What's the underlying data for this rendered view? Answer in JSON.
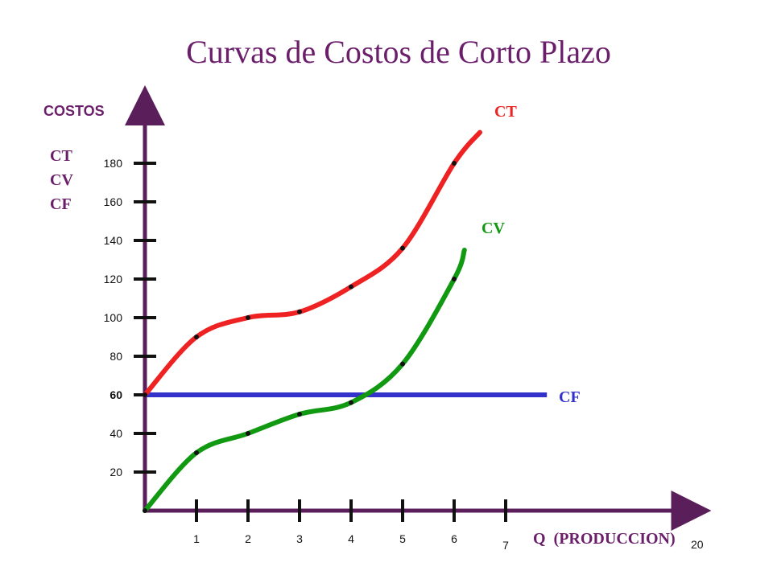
{
  "slide_number": "20",
  "chart_data": {
    "type": "line",
    "title": "Curvas de Costos de Corto Plazo",
    "ylabel": "COSTOS",
    "ylabel_series": [
      "CT",
      "CV",
      "CF"
    ],
    "xlabel": "Q  (PRODUCCION)",
    "x_ticks": [
      "1",
      "2",
      "3",
      "4",
      "5",
      "6",
      "7"
    ],
    "y_ticks": [
      "20",
      "40",
      "60",
      "80",
      "100",
      "120",
      "140",
      "160",
      "180"
    ],
    "xlim": [
      0,
      10.6
    ],
    "ylim": [
      0,
      210
    ],
    "series": [
      {
        "name": "CT",
        "color": "#ee2222",
        "x": [
          0,
          1,
          2,
          3,
          4,
          5,
          6,
          6.5
        ],
        "values": [
          60,
          90,
          100,
          103,
          116,
          136,
          180,
          196
        ]
      },
      {
        "name": "CV",
        "color": "#119911",
        "x": [
          0,
          1,
          2,
          3,
          4,
          5,
          6,
          6.2
        ],
        "values": [
          0,
          30,
          40,
          50,
          56,
          76,
          120,
          135
        ]
      },
      {
        "name": "CF",
        "color": "#3333cc",
        "x": [
          0,
          7.8
        ],
        "values": [
          60,
          60
        ]
      }
    ],
    "colors": {
      "title": "#6b1f6b",
      "axis": "#5a1f5a",
      "tick": "#111111"
    }
  }
}
